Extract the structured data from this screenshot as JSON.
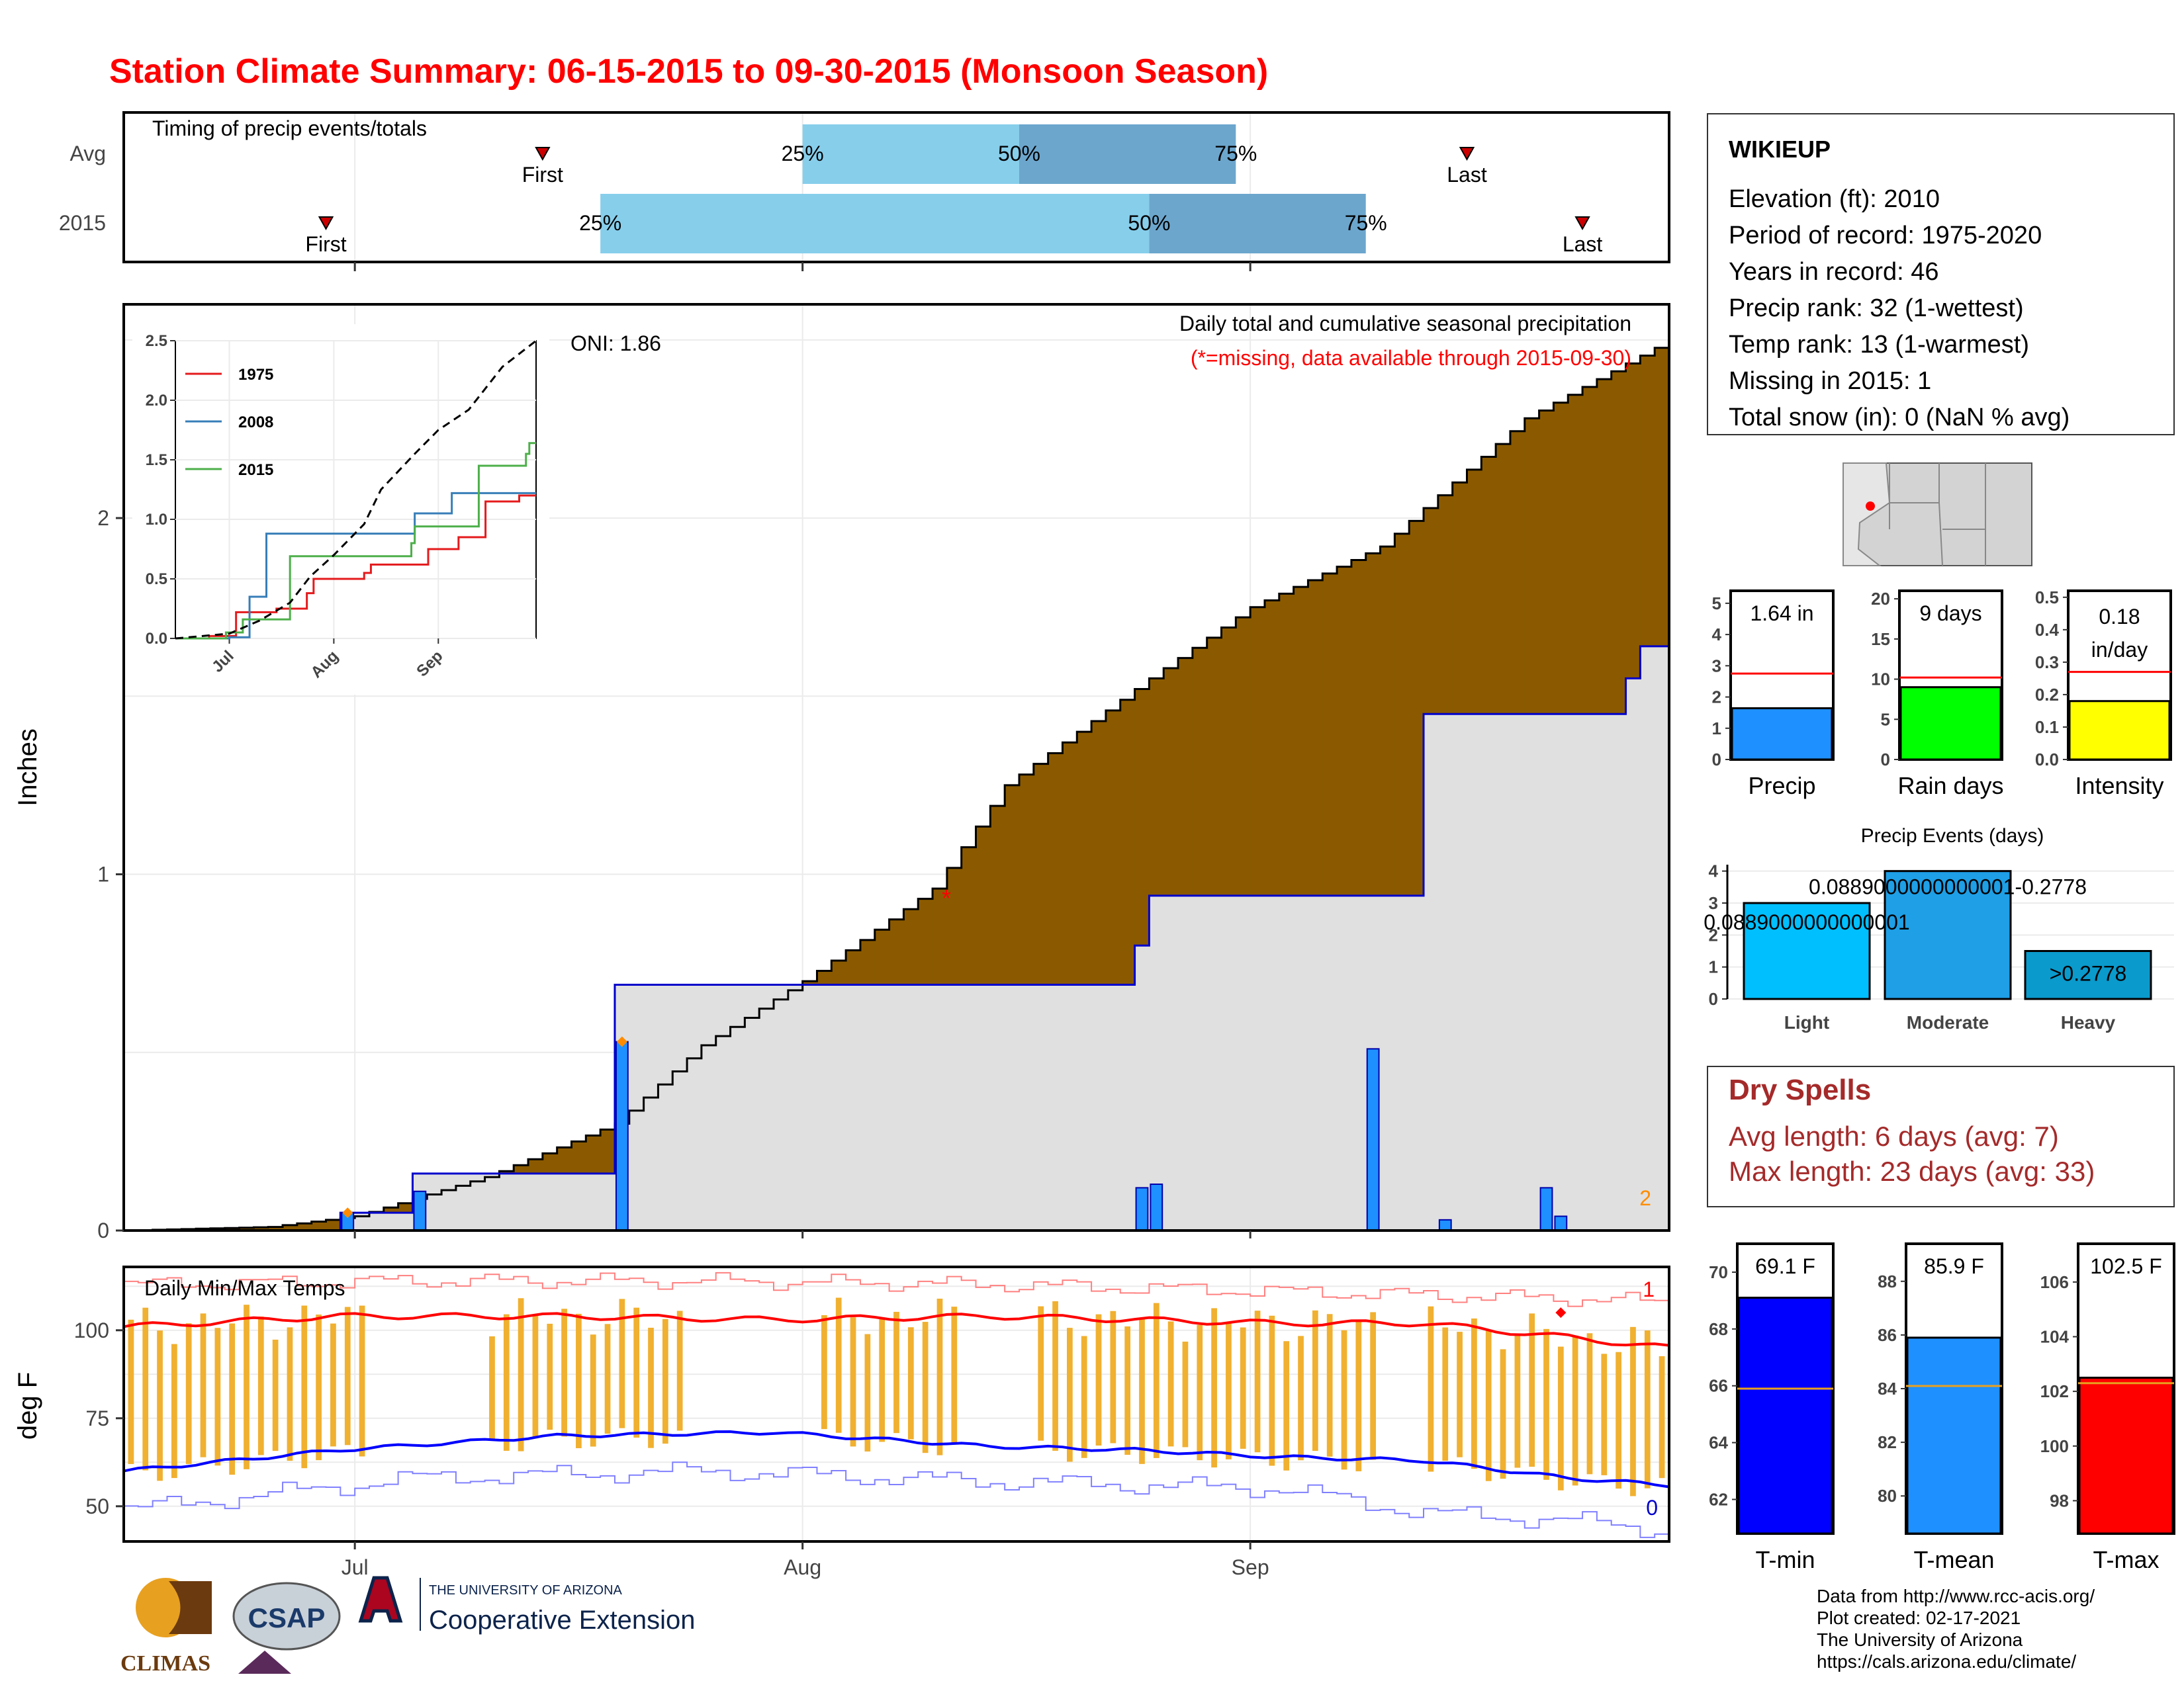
{
  "title": "Station Climate Summary: 06-15-2015 to 09-30-2015 (Monsoon Season)",
  "colors": {
    "title": "#ff0000",
    "brown": "#8b5a00",
    "green": "#008a00",
    "gray_fill": "#e0e0e0",
    "blue_bar": "#1e90ff",
    "light_blue": "#87ceeb",
    "mid_blue": "#6ca6cd",
    "orange_bar": "#f0b030",
    "tmax_line": "#ff0000",
    "tmin_line": "#0000ff",
    "dry_spell_text": "#a52a2a"
  },
  "timing_panel": {
    "label": "Timing of precip events/totals",
    "rows": [
      {
        "label": "Avg",
        "first_label": "First",
        "last_label": "Last",
        "first": "2015-07-14",
        "p25": "2015-08-01",
        "p50": "2015-08-16",
        "p75": "2015-08-31",
        "last": "2015-09-16"
      },
      {
        "label": "2015",
        "first_label": "First",
        "last_label": "Last",
        "first": "2015-06-29",
        "p25": "2015-07-18",
        "p50": "2015-08-25",
        "p75": "2015-09-09",
        "last": "2015-09-24"
      }
    ],
    "pct_labels": [
      "25%",
      "50%",
      "75%"
    ]
  },
  "precip_panel": {
    "title_line1": "Daily total and cumulative seasonal precipitation",
    "title_line2": "(*=missing, data available through 2015-09-30)",
    "oni": "ONI: 1.86",
    "y_axis_label": "Inches",
    "y_ticks": [
      "0",
      "1",
      "2"
    ],
    "corner_count": "2",
    "missing_marker": "*"
  },
  "inset": {
    "legend": [
      "1975",
      "2008",
      "2015"
    ],
    "y_ticks": [
      "0.0",
      "0.5",
      "1.0",
      "1.5",
      "2.0",
      "2.5"
    ],
    "x_ticks": [
      "Jul",
      "Aug",
      "Sep"
    ]
  },
  "temp_panel": {
    "title": "Daily Min/Max Temps",
    "y_axis_label": "deg F",
    "y_ticks": [
      "50",
      "75",
      "100"
    ],
    "x_ticks": [
      "Jul",
      "Aug",
      "Sep"
    ],
    "max_record_count": "1",
    "min_record_count": "0"
  },
  "station": {
    "name": "WIKIEUP",
    "lines": [
      "Elevation (ft): 2010",
      "Period of record: 1975-2020",
      "Years in record: 46",
      "Precip rank: 32 (1-wettest)",
      "Temp rank: 13 (1-warmest)",
      "Missing in 2015: 1",
      "Total snow (in): 0 (NaN % avg)"
    ]
  },
  "mini_bars": [
    {
      "label": "Precip",
      "value_label": "1.64 in",
      "value": 1.64,
      "avg": 2.75,
      "max": 5.4,
      "ticks": [
        "0",
        "1",
        "2",
        "3",
        "4",
        "5"
      ],
      "color": "#1e90ff"
    },
    {
      "label": "Rain days",
      "value_label": "9 days",
      "value": 9,
      "avg": 10.2,
      "max": 21,
      "ticks": [
        "0",
        "5",
        "10",
        "15",
        "20"
      ],
      "color": "#00ff00"
    },
    {
      "label": "Intensity",
      "value_label_1": "0.18",
      "value_label_2": "in/day",
      "value": 0.18,
      "avg": 0.27,
      "max": 0.52,
      "ticks": [
        "0.0",
        "0.1",
        "0.2",
        "0.3",
        "0.4",
        "0.5"
      ],
      "color": "#ffff00"
    }
  ],
  "events_panel": {
    "title": "Precip Events (days)",
    "categories": [
      "Light",
      "Moderate",
      "Heavy"
    ],
    "values": [
      3,
      4,
      1.5
    ],
    "labels": [
      "0.0889000000000001",
      "0.0889000000000001-0.2778",
      ">0.2778"
    ],
    "y_ticks": [
      "0",
      "1",
      "2",
      "3",
      "4"
    ]
  },
  "dry_spells": {
    "title": "Dry Spells",
    "avg_line": "Avg length: 6 days (avg: 7)",
    "max_line": "Max length: 23 days (avg: 33)"
  },
  "temp_bars": [
    {
      "label": "T-min",
      "value_label": "69.1 F",
      "value": 69.1,
      "avg": 65.9,
      "min": 60.8,
      "max": 71.0,
      "ticks": [
        "62",
        "64",
        "66",
        "68",
        "70"
      ],
      "color": "#0000ff"
    },
    {
      "label": "T-mean",
      "value_label": "85.9 F",
      "value": 85.9,
      "avg": 84.1,
      "min": 78.6,
      "max": 89.4,
      "ticks": [
        "80",
        "82",
        "84",
        "86",
        "88"
      ],
      "color": "#1e90ff"
    },
    {
      "label": "T-max",
      "value_label": "102.5 F",
      "value": 102.5,
      "avg": 102.3,
      "min": 96.8,
      "max": 107.4,
      "ticks": [
        "98",
        "100",
        "102",
        "104",
        "106"
      ],
      "color": "#ff0000"
    }
  ],
  "footer": {
    "logos": [
      "CLIMAS",
      "CSAP",
      "THE UNIVERSITY OF ARIZONA",
      "Cooperative Extension"
    ],
    "lines": [
      "Data from http://www.rcc-acis.org/",
      "Plot created: 02-17-2021",
      "The University of Arizona",
      "https://cals.arizona.edu/climate/"
    ]
  },
  "chart_data": [
    {
      "type": "area",
      "name": "cumulative precipitation",
      "x_range": [
        "2015-06-15",
        "2015-09-30"
      ],
      "ylim": [
        0,
        2.6
      ],
      "observed_2015_steps": [
        [
          "2015-06-15",
          0
        ],
        [
          "2015-06-30",
          0.05
        ],
        [
          "2015-07-05",
          0.16
        ],
        [
          "2015-07-19",
          0.69
        ],
        [
          "2015-08-24",
          0.8
        ],
        [
          "2015-08-25",
          0.94
        ],
        [
          "2015-09-13",
          1.45
        ],
        [
          "2015-09-27",
          1.55
        ],
        [
          "2015-09-28",
          1.64
        ]
      ],
      "daily_bars": [
        [
          "2015-06-30",
          0.05
        ],
        [
          "2015-07-05",
          0.11
        ],
        [
          "2015-07-19",
          0.53
        ],
        [
          "2015-08-24",
          0.12
        ],
        [
          "2015-08-25",
          0.13
        ],
        [
          "2015-09-09",
          0.51
        ],
        [
          "2015-09-14",
          0.03
        ],
        [
          "2015-09-21",
          0.12
        ],
        [
          "2015-09-22",
          0.04
        ]
      ],
      "average_cumulative": [
        [
          "2015-06-15",
          0
        ],
        [
          "2015-06-25",
          0.01
        ],
        [
          "2015-07-01",
          0.04
        ],
        [
          "2015-07-10",
          0.15
        ],
        [
          "2015-07-19",
          0.3
        ],
        [
          "2015-07-25",
          0.52
        ],
        [
          "2015-08-01",
          0.7
        ],
        [
          "2015-08-10",
          0.96
        ],
        [
          "2015-08-15",
          1.25
        ],
        [
          "2015-08-25",
          1.55
        ],
        [
          "2015-09-01",
          1.75
        ],
        [
          "2015-09-10",
          1.92
        ],
        [
          "2015-09-20",
          2.28
        ],
        [
          "2015-09-30",
          2.5
        ]
      ]
    },
    {
      "type": "line",
      "name": "inset cumulative comparison",
      "series": [
        {
          "name": "1975",
          "steps": [
            [
              "2015-06-15",
              0
            ],
            [
              "2015-06-25",
              0.02
            ],
            [
              "2015-07-03",
              0.22
            ],
            [
              "2015-07-15",
              0.25
            ],
            [
              "2015-07-24",
              0.38
            ],
            [
              "2015-07-26",
              0.5
            ],
            [
              "2015-08-10",
              0.55
            ],
            [
              "2015-08-12",
              0.62
            ],
            [
              "2015-08-29",
              0.75
            ],
            [
              "2015-09-07",
              0.85
            ],
            [
              "2015-09-15",
              1.15
            ],
            [
              "2015-09-25",
              1.2
            ]
          ]
        },
        {
          "name": "2008",
          "steps": [
            [
              "2015-06-15",
              0
            ],
            [
              "2015-07-01",
              0.01
            ],
            [
              "2015-07-07",
              0.35
            ],
            [
              "2015-07-12",
              0.88
            ],
            [
              "2015-08-25",
              1.05
            ],
            [
              "2015-09-05",
              1.22
            ]
          ]
        },
        {
          "name": "2015",
          "steps": [
            [
              "2015-06-15",
              0
            ],
            [
              "2015-06-30",
              0.05
            ],
            [
              "2015-07-05",
              0.16
            ],
            [
              "2015-07-19",
              0.69
            ],
            [
              "2015-08-24",
              0.8
            ],
            [
              "2015-08-25",
              0.94
            ],
            [
              "2015-09-13",
              1.45
            ],
            [
              "2015-09-27",
              1.55
            ],
            [
              "2015-09-28",
              1.64
            ]
          ]
        },
        {
          "name": "average",
          "style": "dashed",
          "points": [
            [
              "2015-06-15",
              0
            ],
            [
              "2015-07-01",
              0.04
            ],
            [
              "2015-07-10",
              0.15
            ],
            [
              "2015-07-19",
              0.3
            ],
            [
              "2015-07-25",
              0.52
            ],
            [
              "2015-08-01",
              0.7
            ],
            [
              "2015-08-10",
              0.96
            ],
            [
              "2015-08-15",
              1.25
            ],
            [
              "2015-08-25",
              1.55
            ],
            [
              "2015-09-01",
              1.75
            ],
            [
              "2015-09-10",
              1.92
            ],
            [
              "2015-09-20",
              2.28
            ],
            [
              "2015-09-30",
              2.5
            ]
          ]
        }
      ],
      "ylim": [
        0,
        2.5
      ]
    },
    {
      "type": "line",
      "name": "daily temperatures",
      "ylim": [
        40,
        118
      ],
      "tmax_avg": [
        [
          0,
          101
        ],
        [
          15,
          104
        ],
        [
          30,
          104
        ],
        [
          45,
          103
        ],
        [
          60,
          104
        ],
        [
          70,
          103
        ],
        [
          80,
          102
        ],
        [
          90,
          102
        ],
        [
          100,
          98
        ],
        [
          107,
          95
        ]
      ],
      "tmin_avg": [
        [
          0,
          60
        ],
        [
          15,
          66
        ],
        [
          30,
          70
        ],
        [
          45,
          71
        ],
        [
          60,
          67
        ],
        [
          70,
          66
        ],
        [
          80,
          64
        ],
        [
          90,
          63
        ],
        [
          100,
          58
        ],
        [
          107,
          56
        ]
      ],
      "tmax_record": [
        [
          0,
          113
        ],
        [
          20,
          114
        ],
        [
          40,
          114
        ],
        [
          60,
          113
        ],
        [
          80,
          111
        ],
        [
          100,
          109
        ],
        [
          107,
          108
        ]
      ],
      "tmin_record": [
        [
          0,
          49
        ],
        [
          20,
          58
        ],
        [
          40,
          60
        ],
        [
          60,
          57
        ],
        [
          80,
          55
        ],
        [
          90,
          48
        ],
        [
          100,
          46
        ],
        [
          107,
          43
        ]
      ]
    }
  ]
}
